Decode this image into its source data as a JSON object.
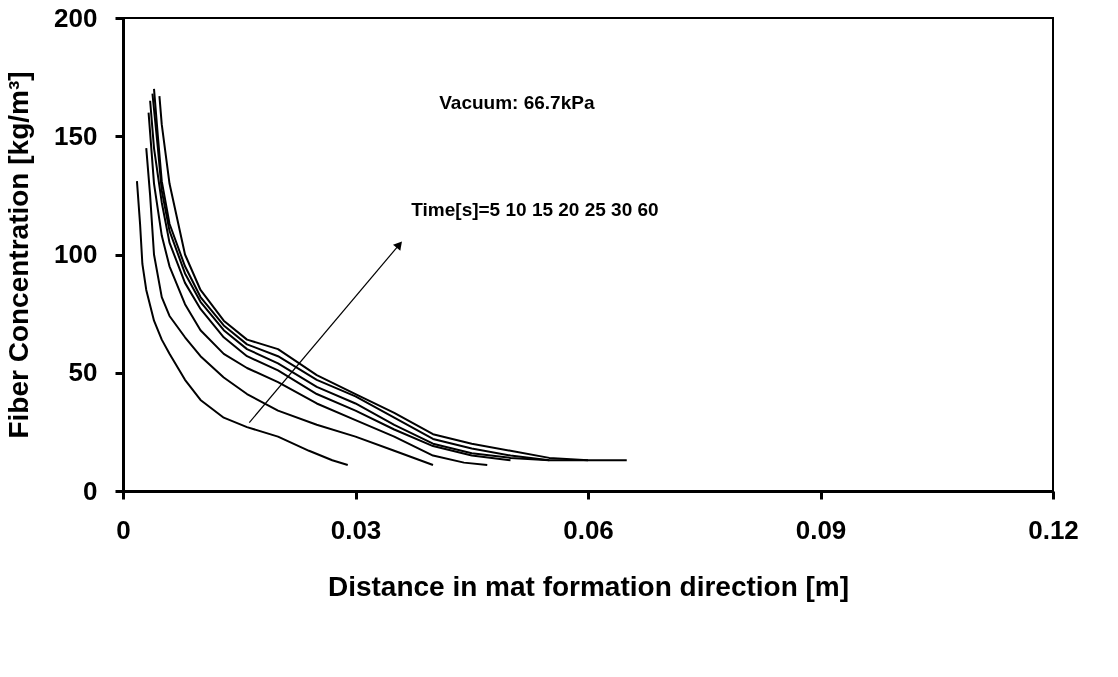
{
  "chart_data": {
    "type": "line",
    "line_style": "solid",
    "xlabel": "Distance in mat formation direction [m]",
    "ylabel": "Fiber Concentration [kg/m³]",
    "xlim": [
      0,
      0.12
    ],
    "xticks": [
      0,
      0.03,
      0.06,
      0.09,
      0.12
    ],
    "ylim": [
      0,
      200
    ],
    "yticks": [
      0,
      50,
      100,
      150,
      200
    ],
    "grid": false,
    "legend": false,
    "annotations": [
      "Vacuum: 66.7kPa",
      "Time[s]=5 10 15 20 25 30 60"
    ],
    "series": [
      {
        "color": "#000000",
        "x": [
          0.0018,
          0.0022,
          0.0025,
          0.003,
          0.004,
          0.005,
          0.006,
          0.008,
          0.01,
          0.013,
          0.016,
          0.02,
          0.024,
          0.027,
          0.029
        ],
        "values": [
          131,
          113,
          96,
          85,
          72,
          64,
          58,
          47,
          38.5,
          31,
          27,
          23,
          17,
          13,
          11
        ]
      },
      {
        "color": "#000000",
        "x": [
          0.003,
          0.0035,
          0.004,
          0.005,
          0.006,
          0.008,
          0.01,
          0.013,
          0.016,
          0.02,
          0.025,
          0.03,
          0.035,
          0.04
        ],
        "values": [
          145,
          125,
          100,
          82,
          74,
          65,
          57,
          48,
          41,
          34,
          28,
          23,
          17,
          11
        ]
      },
      {
        "color": "#000000",
        "x": [
          0.0033,
          0.004,
          0.005,
          0.006,
          0.008,
          0.01,
          0.013,
          0.016,
          0.02,
          0.025,
          0.03,
          0.035,
          0.04,
          0.044,
          0.047
        ],
        "values": [
          160,
          130,
          108,
          95,
          79,
          68,
          58,
          52,
          46,
          37,
          30,
          23,
          15,
          12,
          11
        ]
      },
      {
        "color": "#000000",
        "x": [
          0.0035,
          0.004,
          0.005,
          0.006,
          0.008,
          0.01,
          0.013,
          0.016,
          0.02,
          0.025,
          0.03,
          0.035,
          0.04,
          0.045,
          0.05
        ],
        "values": [
          165,
          145,
          122,
          105,
          88,
          77,
          65,
          57,
          51,
          41,
          34,
          26,
          19,
          15,
          13
        ]
      },
      {
        "color": "#000000",
        "x": [
          0.0038,
          0.0045,
          0.005,
          0.006,
          0.008,
          0.01,
          0.013,
          0.016,
          0.02,
          0.025,
          0.03,
          0.035,
          0.04,
          0.045,
          0.05,
          0.055
        ],
        "values": [
          168,
          145,
          127,
          110,
          92,
          80,
          68,
          60,
          54,
          44,
          37,
          28,
          20,
          16,
          14,
          13
        ]
      },
      {
        "color": "#000000",
        "x": [
          0.004,
          0.0045,
          0.005,
          0.006,
          0.008,
          0.01,
          0.013,
          0.016,
          0.02,
          0.025,
          0.03,
          0.035,
          0.04,
          0.045,
          0.05,
          0.055,
          0.06
        ],
        "values": [
          170,
          150,
          131,
          113,
          95,
          82,
          70,
          62,
          57,
          47,
          40,
          31,
          22,
          18,
          15,
          13,
          13
        ]
      },
      {
        "color": "#000000",
        "x": [
          0.0047,
          0.005,
          0.006,
          0.007,
          0.008,
          0.01,
          0.013,
          0.016,
          0.02,
          0.025,
          0.03,
          0.035,
          0.04,
          0.045,
          0.05,
          0.055,
          0.06,
          0.065
        ],
        "values": [
          167,
          155,
          130,
          115,
          100,
          85,
          72,
          64,
          60,
          49,
          41,
          33,
          24,
          20,
          17,
          14,
          13,
          13
        ]
      }
    ]
  }
}
